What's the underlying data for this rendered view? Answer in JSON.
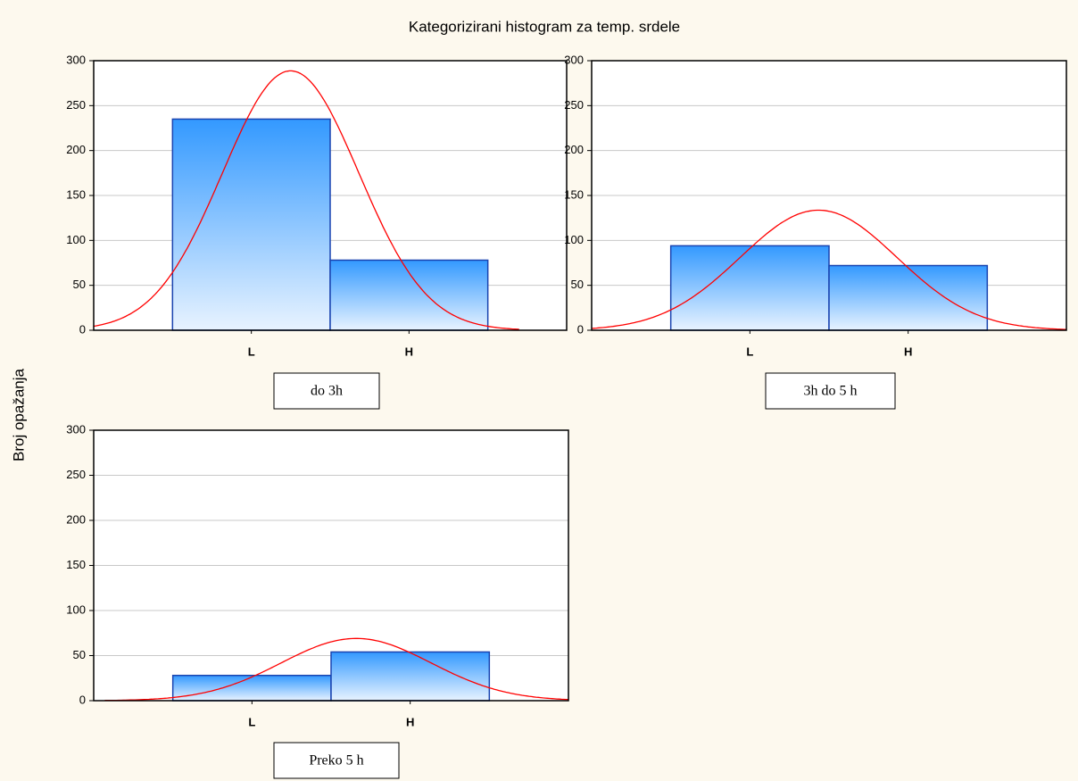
{
  "chart_data": {
    "type": "histogram",
    "title": "Kategorizirani histogram za temp. srdele",
    "y_label": "Broj opažanja",
    "ylim": [
      0,
      300
    ],
    "yticks": [
      0,
      50,
      100,
      150,
      200,
      250,
      300
    ],
    "grid": true,
    "color": "#3399ff",
    "edge_color": "#1a44b0",
    "curve_color": "#ff0000",
    "panels": [
      {
        "label": "do 3h",
        "categories": [
          "L",
          "H"
        ],
        "values": [
          235,
          78
        ]
      },
      {
        "label": "3h do 5 h",
        "categories": [
          "L",
          "H"
        ],
        "values": [
          94,
          72
        ]
      },
      {
        "label": "Preko 5 h",
        "categories": [
          "L",
          "H"
        ],
        "values": [
          28,
          54
        ]
      }
    ]
  }
}
